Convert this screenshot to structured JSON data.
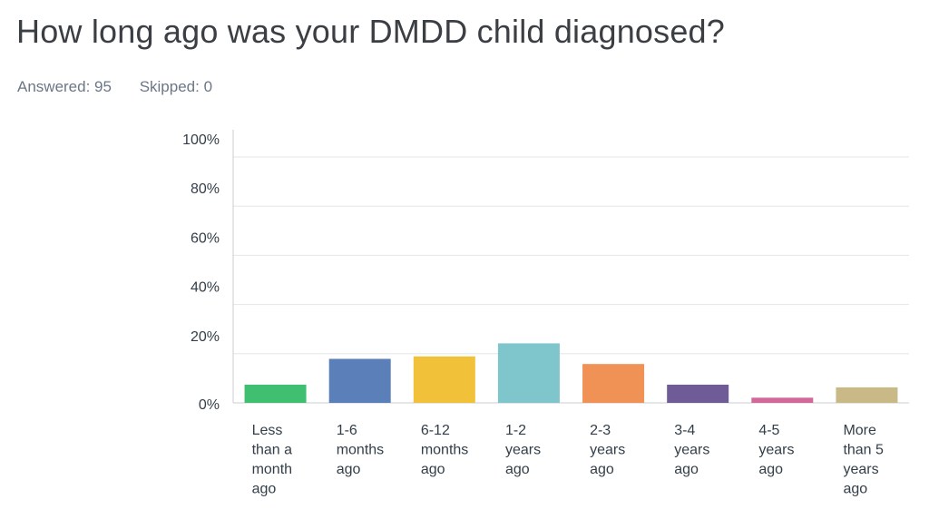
{
  "page": {
    "title": "How long ago was your DMDD child diagnosed?",
    "answered": "Answered: 95",
    "skipped": "Skipped: 0"
  },
  "chart_data": {
    "type": "bar",
    "categories": [
      [
        "Less",
        "than a",
        "month",
        "ago"
      ],
      [
        "1-6",
        "months",
        "ago"
      ],
      [
        "6-12",
        "months",
        "ago"
      ],
      [
        "1-2",
        "years",
        "ago"
      ],
      [
        "2-3",
        "years",
        "ago"
      ],
      [
        "3-4",
        "years",
        "ago"
      ],
      [
        "4-5",
        "years",
        "ago"
      ],
      [
        "More",
        "than 5",
        "years",
        "ago"
      ]
    ],
    "values": [
      7.4,
      17.9,
      18.9,
      24.2,
      15.8,
      7.4,
      2.1,
      6.3
    ],
    "colors": [
      "#3fbf6f",
      "#5b7fb8",
      "#f2c13a",
      "#7fc6cc",
      "#f09155",
      "#6f5c96",
      "#d2679a",
      "#c8b986"
    ],
    "yticks": [
      "0%",
      "20%",
      "40%",
      "60%",
      "80%",
      "100%"
    ],
    "ylim": [
      0,
      100
    ],
    "grid": true,
    "xlabel": "",
    "ylabel": ""
  }
}
